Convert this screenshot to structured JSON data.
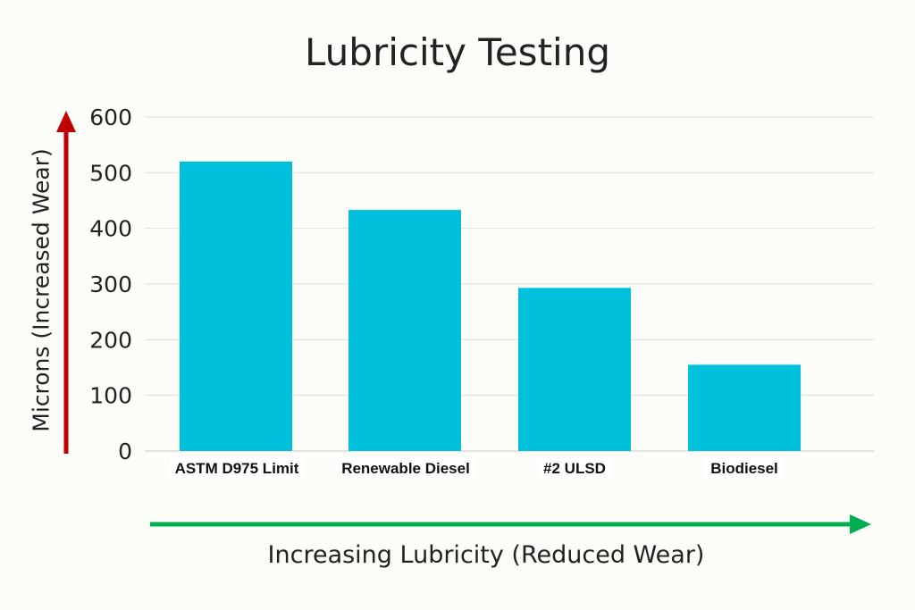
{
  "chart_data": {
    "type": "bar",
    "title": "Lubricity Testing",
    "xlabel": "Increasing Lubricity (Reduced Wear)",
    "ylabel": "Microns (Increased Wear)",
    "categories": [
      "ASTM D975 Limit",
      "Renewable Diesel",
      "#2 ULSD",
      "Biodiesel"
    ],
    "values": [
      520,
      433,
      293,
      155
    ],
    "ylim": [
      0,
      600
    ],
    "yticks": [
      "0",
      "100",
      "200",
      "300",
      "400",
      "500",
      "600"
    ],
    "grid": true,
    "bar_color": "#00c0dc",
    "y_arrow_color": "#c00000",
    "x_arrow_color": "#00b050"
  }
}
